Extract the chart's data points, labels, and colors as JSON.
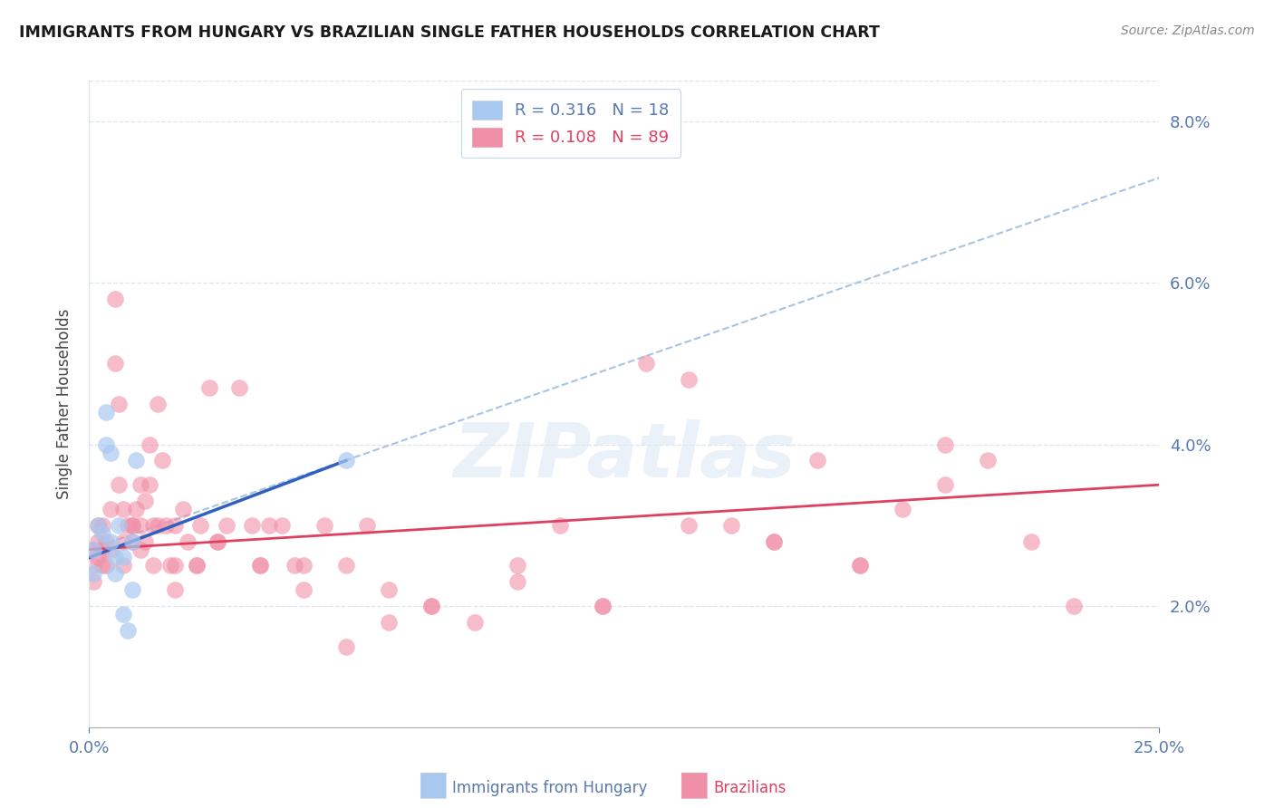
{
  "title": "IMMIGRANTS FROM HUNGARY VS BRAZILIAN SINGLE FATHER HOUSEHOLDS CORRELATION CHART",
  "source": "Source: ZipAtlas.com",
  "ylabel": "Single Father Households",
  "xlim": [
    0.0,
    0.25
  ],
  "ylim": [
    0.005,
    0.085
  ],
  "yticks": [
    0.02,
    0.04,
    0.06,
    0.08
  ],
  "ytick_labels": [
    "2.0%",
    "4.0%",
    "6.0%",
    "8.0%"
  ],
  "legend_blue_r": "R = 0.316",
  "legend_blue_n": "N = 18",
  "legend_pink_r": "R = 0.108",
  "legend_pink_n": "N = 89",
  "blue_color": "#a8c8f0",
  "pink_color": "#f090a8",
  "blue_line_color": "#3060c0",
  "pink_line_color": "#e04060",
  "dashed_line_color": "#a8c4e0",
  "grid_color": "#dde4ee",
  "tick_color": "#5878b0",
  "watermark": "ZIPatlas",
  "blue_scatter_x": [
    0.001,
    0.001,
    0.002,
    0.003,
    0.004,
    0.004,
    0.005,
    0.005,
    0.006,
    0.006,
    0.007,
    0.008,
    0.008,
    0.009,
    0.01,
    0.01,
    0.011,
    0.06
  ],
  "blue_scatter_y": [
    0.027,
    0.024,
    0.03,
    0.029,
    0.044,
    0.04,
    0.039,
    0.028,
    0.026,
    0.024,
    0.03,
    0.026,
    0.019,
    0.017,
    0.028,
    0.022,
    0.038,
    0.038
  ],
  "pink_scatter_x": [
    0.001,
    0.001,
    0.001,
    0.002,
    0.002,
    0.002,
    0.003,
    0.003,
    0.003,
    0.004,
    0.004,
    0.005,
    0.005,
    0.006,
    0.006,
    0.007,
    0.007,
    0.008,
    0.008,
    0.009,
    0.01,
    0.01,
    0.011,
    0.012,
    0.012,
    0.013,
    0.013,
    0.014,
    0.014,
    0.015,
    0.016,
    0.016,
    0.017,
    0.018,
    0.019,
    0.02,
    0.02,
    0.022,
    0.023,
    0.025,
    0.026,
    0.028,
    0.03,
    0.032,
    0.035,
    0.038,
    0.04,
    0.042,
    0.045,
    0.048,
    0.05,
    0.055,
    0.06,
    0.065,
    0.07,
    0.08,
    0.09,
    0.1,
    0.11,
    0.12,
    0.13,
    0.14,
    0.15,
    0.16,
    0.17,
    0.18,
    0.19,
    0.2,
    0.21,
    0.22,
    0.23,
    0.2,
    0.18,
    0.16,
    0.14,
    0.12,
    0.1,
    0.08,
    0.07,
    0.06,
    0.05,
    0.04,
    0.03,
    0.025,
    0.02,
    0.015,
    0.012,
    0.01,
    0.008
  ],
  "pink_scatter_y": [
    0.027,
    0.025,
    0.023,
    0.03,
    0.026,
    0.028,
    0.025,
    0.027,
    0.03,
    0.028,
    0.025,
    0.027,
    0.032,
    0.058,
    0.05,
    0.045,
    0.035,
    0.028,
    0.032,
    0.03,
    0.028,
    0.03,
    0.032,
    0.035,
    0.03,
    0.028,
    0.033,
    0.04,
    0.035,
    0.03,
    0.045,
    0.03,
    0.038,
    0.03,
    0.025,
    0.025,
    0.03,
    0.032,
    0.028,
    0.025,
    0.03,
    0.047,
    0.028,
    0.03,
    0.047,
    0.03,
    0.025,
    0.03,
    0.03,
    0.025,
    0.022,
    0.03,
    0.025,
    0.03,
    0.022,
    0.02,
    0.018,
    0.025,
    0.03,
    0.02,
    0.05,
    0.048,
    0.03,
    0.028,
    0.038,
    0.025,
    0.032,
    0.04,
    0.038,
    0.028,
    0.02,
    0.035,
    0.025,
    0.028,
    0.03,
    0.02,
    0.023,
    0.02,
    0.018,
    0.015,
    0.025,
    0.025,
    0.028,
    0.025,
    0.022,
    0.025,
    0.027,
    0.03,
    0.025
  ],
  "blue_trend_x": [
    0.0,
    0.06
  ],
  "blue_trend_y": [
    0.026,
    0.038
  ],
  "pink_trend_x": [
    0.0,
    0.25
  ],
  "pink_trend_y": [
    0.027,
    0.035
  ],
  "dashed_line_x": [
    0.0,
    0.25
  ],
  "dashed_line_y": [
    0.027,
    0.073
  ]
}
